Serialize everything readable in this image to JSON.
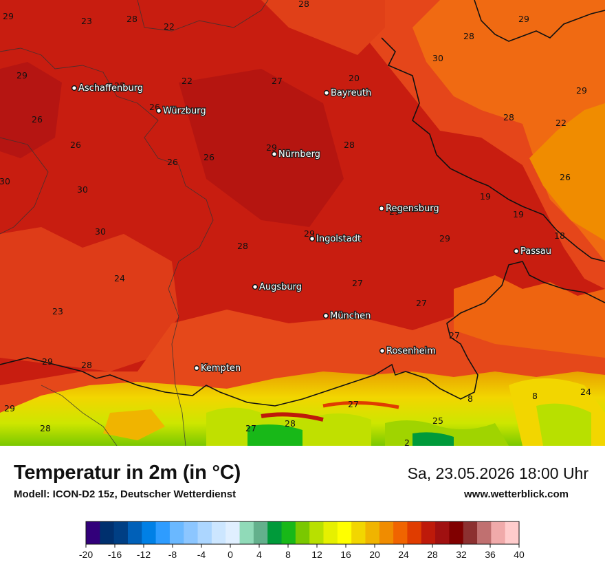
{
  "title": "Temperatur in 2m (in °C)",
  "subtitle": "Modell: ICON-D2 15z, Deutscher Wetterdienst",
  "datetime": "Sa, 23.05.2026 18:00 Uhr",
  "website": "www.wetterblick.com",
  "cities": [
    {
      "name": "Aschaffenburg"
    },
    {
      "name": "Würzburg"
    },
    {
      "name": "Bayreuth"
    },
    {
      "name": "Nürnberg"
    },
    {
      "name": "Regensburg"
    },
    {
      "name": "Ingolstadt"
    },
    {
      "name": "Passau"
    },
    {
      "name": "Augsburg"
    },
    {
      "name": "München"
    },
    {
      "name": "Rosenheim"
    },
    {
      "name": "Kempten"
    }
  ],
  "temperature_labels": [
    "28",
    "29",
    "23",
    "28",
    "22",
    "29",
    "20",
    "28",
    "30",
    "29",
    "25",
    "22",
    "27",
    "29",
    "26",
    "26",
    "28",
    "28",
    "22",
    "29",
    "26",
    "26",
    "30",
    "30",
    "26",
    "19",
    "26",
    "30",
    "29",
    "19",
    "28",
    "29",
    "18",
    "24",
    "27",
    "27",
    "23",
    "27",
    "29",
    "29",
    "28",
    "8",
    "8",
    "24",
    "29",
    "28",
    "27",
    "25",
    "28",
    "27",
    "2"
  ],
  "legend": {
    "colors": [
      "#32007a",
      "#00306e",
      "#003f84",
      "#0060b8",
      "#0080e6",
      "#2e9cff",
      "#6ab8ff",
      "#8cc6ff",
      "#acd6ff",
      "#cce6ff",
      "#e0efff",
      "#90dab8",
      "#63b08c",
      "#009a3a",
      "#18b818",
      "#7ac800",
      "#b8e000",
      "#e6f000",
      "#ffff00",
      "#f2d600",
      "#f0b400",
      "#f08c00",
      "#f06400",
      "#e03c00",
      "#be1a0a",
      "#a01010",
      "#800000",
      "#8c3030",
      "#c07070",
      "#f0aaaa",
      "#ffcccc"
    ],
    "tick_labels": [
      "-20",
      "-16",
      "-12",
      "-8",
      "-4",
      "0",
      "4",
      "8",
      "12",
      "16",
      "20",
      "24",
      "28",
      "32",
      "36",
      "40"
    ]
  }
}
